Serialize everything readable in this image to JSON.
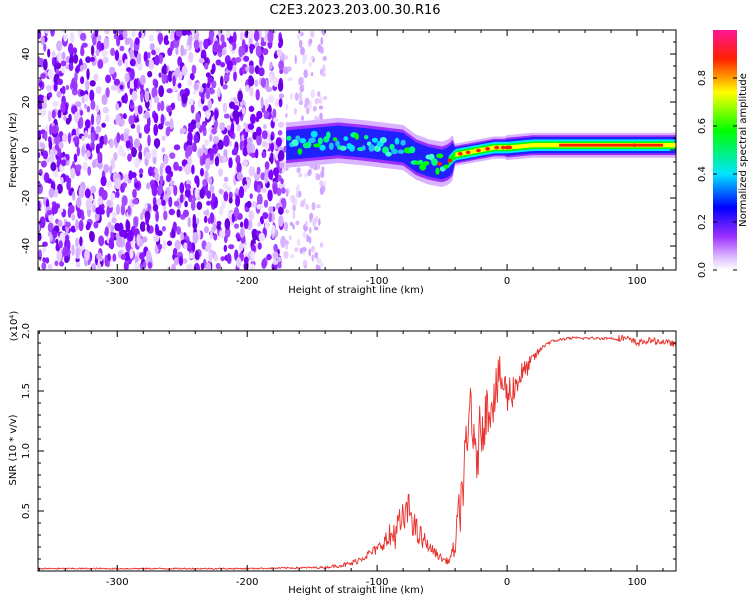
{
  "title": "C2E3.2023.203.00.30.R16",
  "chart_data": [
    {
      "type": "heatmap",
      "xlabel": "Height of straight line (km)",
      "ylabel": "Frequency (Hz)",
      "xlim": [
        -361,
        130
      ],
      "ylim": [
        -50,
        50
      ],
      "xticks": [
        -300,
        -200,
        -100,
        0,
        100
      ],
      "yticks": [
        -40,
        -20,
        0,
        20,
        40
      ],
      "grid": false,
      "colorbar": {
        "label": "Normalized spectral amplitude",
        "range": [
          0.0,
          1.0
        ],
        "ticks": [
          0.0,
          0.2,
          0.4,
          0.6,
          0.8
        ],
        "colormap": [
          "#ffffff",
          "#9b30ff",
          "#0000ff",
          "#00e5ff",
          "#00ff00",
          "#ffff00",
          "#ff0000",
          "#ff1493"
        ]
      },
      "regions": [
        {
          "description": "broadband noise",
          "x_range": [
            -361,
            -170
          ],
          "freq_range": [
            -50,
            50
          ],
          "amplitude_range": [
            0.0,
            0.15
          ]
        },
        {
          "description": "sparse noise",
          "x_range": [
            -170,
            -140
          ],
          "freq_range": [
            -50,
            50
          ],
          "amplitude_range": [
            0.0,
            0.05
          ]
        },
        {
          "description": "signal track",
          "x_range": [
            -170,
            130
          ],
          "freq_center": [
            [
              -170,
              2
            ],
            [
              -150,
              3
            ],
            [
              -130,
              4
            ],
            [
              -110,
              3
            ],
            [
              -95,
              2
            ],
            [
              -80,
              1
            ],
            [
              -70,
              -3
            ],
            [
              -60,
              -5
            ],
            [
              -50,
              -6
            ],
            [
              -45,
              -5
            ],
            [
              -40,
              -2
            ],
            [
              -30,
              -1
            ],
            [
              -20,
              0
            ],
            [
              -10,
              1
            ],
            [
              0,
              1
            ],
            [
              20,
              2
            ],
            [
              50,
              2
            ],
            [
              80,
              2
            ],
            [
              100,
              2
            ],
            [
              130,
              2
            ]
          ]
        }
      ]
    },
    {
      "type": "line",
      "xlabel": "Height of straight line (km)",
      "ylabel": "SNR (10 * v/v)",
      "yscale_label": "(x10⁴)",
      "xlim": [
        -361,
        130
      ],
      "ylim": [
        0,
        2.0
      ],
      "xticks": [
        -300,
        -200,
        -100,
        0,
        100
      ],
      "yticks": [
        0.5,
        1.0,
        1.5,
        2.0
      ],
      "grid": false,
      "series": [
        {
          "color": "#e8302c",
          "x": [
            -361,
            -300,
            -200,
            -140,
            -120,
            -110,
            -100,
            -90,
            -80,
            -75,
            -70,
            -60,
            -50,
            -45,
            -40,
            -35,
            -30,
            -28,
            -25,
            -20,
            -15,
            -10,
            -5,
            0,
            5,
            10,
            15,
            20,
            25,
            30,
            40,
            50,
            60,
            70,
            80,
            90,
            100,
            110,
            120,
            130
          ],
          "values": [
            0.02,
            0.02,
            0.02,
            0.03,
            0.06,
            0.12,
            0.18,
            0.3,
            0.45,
            0.55,
            0.35,
            0.2,
            0.1,
            0.08,
            0.2,
            0.7,
            1.1,
            1.6,
            0.9,
            1.25,
            1.4,
            1.5,
            1.65,
            1.5,
            1.55,
            1.65,
            1.7,
            1.78,
            1.84,
            1.9,
            1.93,
            1.94,
            1.94,
            1.94,
            1.94,
            1.94,
            1.9,
            1.92,
            1.91,
            1.89
          ],
          "noise_envelope": [
            [
              -361,
              0.02
            ],
            [
              -200,
              0.02
            ],
            [
              -140,
              0.03
            ],
            [
              -120,
              0.08
            ],
            [
              -100,
              0.15
            ],
            [
              -85,
              0.3
            ],
            [
              -75,
              0.3
            ],
            [
              -60,
              0.15
            ],
            [
              -45,
              0.08
            ],
            [
              -38,
              0.4
            ],
            [
              -32,
              0.6
            ],
            [
              -25,
              0.55
            ],
            [
              -15,
              0.45
            ],
            [
              -5,
              0.4
            ],
            [
              5,
              0.3
            ],
            [
              15,
              0.15
            ],
            [
              25,
              0.05
            ],
            [
              40,
              0.02
            ],
            [
              80,
              0.02
            ],
            [
              90,
              0.06
            ],
            [
              100,
              0.05
            ],
            [
              130,
              0.04
            ]
          ]
        }
      ]
    }
  ]
}
